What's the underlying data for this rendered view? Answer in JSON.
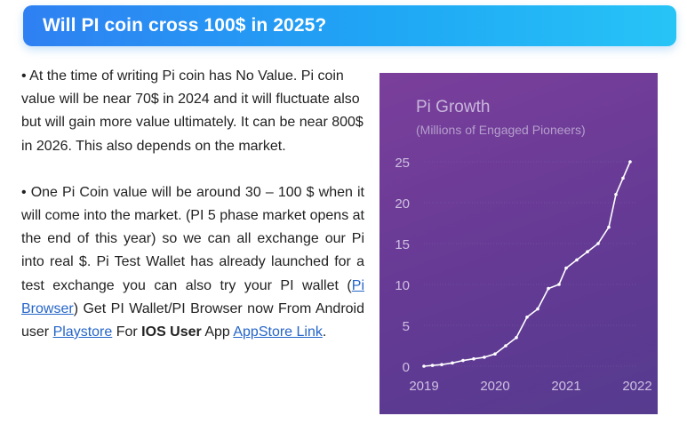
{
  "header": {
    "title": "Will PI coin cross 100$ in 2025?"
  },
  "article": {
    "p1": "• At the time of writing Pi coin has No Value. Pi coin value will be near 70$ in 2024 and it will fluctuate also but will gain more value ultimately. It can be near 800$ in 2026. This also depends on the market.",
    "p2_a": "• One Pi Coin value will be around 30 – 100 $ when it will come into the market. (PI 5 phase market opens at the end of this year) so we can all exchange our Pi into real $. Pi Test Wallet has already launched for a test exchange you can also try your PI wallet (",
    "link_pi_browser": "Pi Browser",
    "p2_b": ") Get PI Wallet/PI Browser now From Android user ",
    "link_playstore": "Playstore",
    "p2_c": " For ",
    "bold_ios_user": "IOS User",
    "p2_d": " App ",
    "link_appstore": "AppStore Link",
    "p2_e": "."
  },
  "colors": {
    "title_gradient_start": "#2f80f2",
    "title_gradient_end": "#27c4f6",
    "link": "#2565c8",
    "chart_bg": "#643a94",
    "chart_line": "#ffffff"
  },
  "chart_data": {
    "type": "line",
    "title": "Pi Growth",
    "subtitle": "(Millions of Engaged Pioneers)",
    "xlabel": "",
    "ylabel": "",
    "x_ticks": [
      "2019",
      "2020",
      "2021",
      "2022"
    ],
    "y_ticks": [
      "0",
      "5",
      "10",
      "15",
      "20",
      "25"
    ],
    "xlim": [
      2019,
      2022
    ],
    "ylim": [
      0,
      25
    ],
    "grid": true,
    "legend": "none",
    "series": [
      {
        "x": [
          2019.0,
          2019.12,
          2019.25,
          2019.4,
          2019.55,
          2019.7,
          2019.85,
          2020.0,
          2020.15,
          2020.3,
          2020.45,
          2020.6,
          2020.75,
          2020.9,
          2021.0,
          2021.15,
          2021.3,
          2021.45,
          2021.6,
          2021.7,
          2021.8,
          2021.9
        ],
        "y": [
          0.0,
          0.1,
          0.2,
          0.4,
          0.7,
          0.9,
          1.1,
          1.5,
          2.5,
          3.5,
          6.0,
          7.0,
          9.5,
          10.0,
          12.0,
          13.0,
          14.0,
          15.0,
          17.0,
          21.0,
          23.0,
          25.0
        ]
      }
    ]
  }
}
